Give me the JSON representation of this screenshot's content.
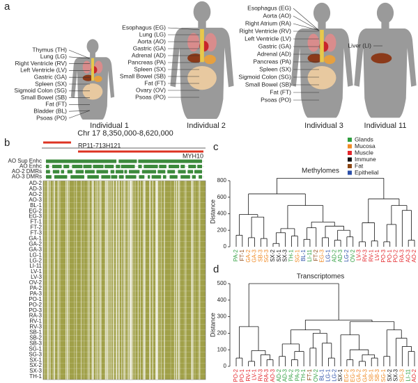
{
  "panel_a": {
    "label": "a",
    "individuals": [
      {
        "name": "Individual 1",
        "organs": [
          "Thymus (TH)",
          "Lung (LG)",
          "Right Ventricle (RV)",
          "Left Ventricle (LV)",
          "Gastric (GA)",
          "Spleen (SX)",
          "Sigmoid Colon (SG)",
          "Small Bowel (SB)",
          "Fat (FT)",
          "Bladder (BL)",
          "Psoas (PO)"
        ]
      },
      {
        "name": "Individual 2",
        "organs": [
          "Esophagus (EG)",
          "Lung (LG)",
          "Aorta (AO)",
          "Gastric (GA)",
          "Adrenal (AD)",
          "Pancreas (PA)",
          "Spleen (SX)",
          "Small Bowel (SB)",
          "Fat (FT)",
          "Ovary (OV)",
          "Psoas (PO)"
        ]
      },
      {
        "name": "Individual 3",
        "organs": [
          "Esophagus (EG)",
          "Aorta (AO)",
          "Right Atrium (RA)",
          "Right Ventricle (RV)",
          "Left Ventricle (LV)",
          "Gastric (GA)",
          "Adrenal (AD)",
          "Pancreas (PA)",
          "Spleen (SX)",
          "Sigmoid Colon (SG)",
          "Small Bowel (SB)",
          "Fat (FT)",
          "Psoas (PO)"
        ]
      },
      {
        "name": "Individual 11",
        "organs": [
          "Liver (LI)"
        ]
      }
    ]
  },
  "panel_b": {
    "label": "b",
    "region": "Chr 17 8,350,000-8,620,000",
    "genes": [
      "RP11-713H121",
      "MYH10"
    ],
    "tracks": [
      "AO Sup Enhc",
      "AO Enhc",
      "AO-2 DMRs",
      "AO-3 DMRs"
    ],
    "rows": [
      "AD-2",
      "AD-3",
      "AO-2",
      "AO-3",
      "BL-1",
      "EG-2",
      "EG-3",
      "FT-1",
      "FT-2",
      "FT-3",
      "GA-1",
      "GA-2",
      "GA-3",
      "LG-1",
      "LG-2",
      "LI-11",
      "LV-1",
      "LV-3",
      "OV-2",
      "PA-2",
      "PA-3",
      "PO-1",
      "PO-2",
      "PO-3",
      "RA-3",
      "RV-1",
      "RV-3",
      "SB-1",
      "SB-2",
      "SB-3",
      "SG-1",
      "SG-3",
      "SX-1",
      "SX-2",
      "SX-3",
      "TH-1"
    ]
  },
  "legend": [
    {
      "name": "Glands",
      "color": "#2e9e3e"
    },
    {
      "name": "Mucosa",
      "color": "#f08a24"
    },
    {
      "name": "Muscle",
      "color": "#e3262b"
    },
    {
      "name": "Immune",
      "color": "#111111"
    },
    {
      "name": "Fat",
      "color": "#8b4513"
    },
    {
      "name": "Epithelial",
      "color": "#2b4fa8"
    }
  ],
  "panel_c": {
    "label": "c",
    "title": "Methylomes",
    "y_label": "Distance",
    "ylim": [
      0,
      850
    ],
    "yticks": [
      0,
      200,
      400,
      600,
      800
    ],
    "tree": {
      "height": 830,
      "children": [
        {
          "height": 640,
          "children": [
            {
              "height": 390,
              "children": [
                {
                  "height": 140,
                  "children": [
                    {
                      "label": "PA-2",
                      "color": "#2e9e3e"
                    },
                    {
                      "label": "FT-1",
                      "color": "#8b4513"
                    }
                  ]
                },
                {
                  "height": 360,
                  "children": [
                    {
                      "height": 110,
                      "children": [
                        {
                          "label": "GA-2",
                          "color": "#f08a24"
                        },
                        {
                          "label": "GA-3",
                          "color": "#f08a24"
                        }
                      ]
                    },
                    {
                      "height": 100,
                      "children": [
                        {
                          "label": "SB-3",
                          "color": "#f08a24"
                        },
                        {
                          "label": "SG-3",
                          "color": "#f08a24"
                        }
                      ]
                    }
                  ]
                }
              ]
            },
            {
              "height": 500,
              "children": [
                {
                  "height": 220,
                  "children": [
                    {
                      "height": 170,
                      "children": [
                        {
                          "height": 40,
                          "children": [
                            {
                              "label": "SX-2",
                              "color": "#111111"
                            },
                            {
                              "label": "SX-1",
                              "color": "#111111"
                            }
                          ]
                        },
                        {
                          "label": "SX-3",
                          "color": "#111111"
                        }
                      ]
                    },
                    {
                      "height": 130,
                      "children": [
                        {
                          "label": "TH-1",
                          "color": "#2e9e3e"
                        },
                        {
                          "label": "SG-1",
                          "color": "#f08a24"
                        }
                      ]
                    }
                  ]
                },
                {
                  "height": 300,
                  "children": [
                    {
                      "height": 230,
                      "children": [
                        {
                          "height": 90,
                          "children": [
                            {
                              "label": "BL-1",
                              "color": "#2b4fa8"
                            },
                            {
                              "label": "LI-11",
                              "color": "#2e9e3e"
                            }
                          ]
                        },
                        {
                          "label": "FT-2",
                          "color": "#8b4513"
                        }
                      ]
                    },
                    {
                      "height": 250,
                      "children": [
                        {
                          "height": 110,
                          "children": [
                            {
                              "label": "EG-3",
                              "color": "#f08a24"
                            },
                            {
                              "label": "LG-1",
                              "color": "#2b4fa8"
                            }
                          ]
                        },
                        {
                          "height": 200,
                          "children": [
                            {
                              "height": 80,
                              "children": [
                                {
                                  "label": "AD-2",
                                  "color": "#2e9e3e"
                                },
                                {
                                  "label": "AD-3",
                                  "color": "#2e9e3e"
                                }
                              ]
                            },
                            {
                              "height": 120,
                              "children": [
                                {
                                  "label": "LG-2",
                                  "color": "#2b4fa8"
                                },
                                {
                                  "label": "OV-2",
                                  "color": "#2e9e3e"
                                }
                              ]
                            }
                          ]
                        }
                      ]
                    }
                  ]
                }
              ]
            }
          ]
        },
        {
          "height": 580,
          "children": [
            {
              "height": 290,
              "children": [
                {
                  "height": 60,
                  "children": [
                    {
                      "label": "LV-3",
                      "color": "#e3262b"
                    },
                    {
                      "label": "RV-3",
                      "color": "#e3262b"
                    }
                  ]
                },
                {
                  "height": 70,
                  "children": [
                    {
                      "label": "RV-1",
                      "color": "#e3262b"
                    },
                    {
                      "label": "LV-1",
                      "color": "#e3262b"
                    }
                  ]
                }
              ]
            },
            {
              "height": 500,
              "children": [
                {
                  "height": 270,
                  "children": [
                    {
                      "height": 60,
                      "children": [
                        {
                          "label": "PO-3",
                          "color": "#e3262b"
                        },
                        {
                          "label": "PO-1",
                          "color": "#e3262b"
                        }
                      ]
                    },
                    {
                      "label": "PO-2",
                      "color": "#e3262b"
                    }
                  ]
                },
                {
                  "height": 440,
                  "children": [
                    {
                      "label": "RA-3",
                      "color": "#e3262b"
                    },
                    {
                      "height": 80,
                      "children": [
                        {
                          "label": "AO-3",
                          "color": "#e3262b"
                        },
                        {
                          "label": "AO-2",
                          "color": "#e3262b"
                        }
                      ]
                    }
                  ]
                }
              ]
            }
          ]
        }
      ]
    }
  },
  "panel_d": {
    "label": "d",
    "title": "Transcriptomes",
    "y_label": "Distance",
    "ylim": [
      0,
      500
    ],
    "yticks": [
      0,
      100,
      200,
      300,
      400,
      500
    ],
    "tree": {
      "height": 500,
      "children": [
        {
          "height": 240,
          "children": [
            {
              "height": 50,
              "children": [
                {
                  "label": "PO-2",
                  "color": "#e3262b"
                },
                {
                  "label": "PO-1",
                  "color": "#e3262b"
                }
              ]
            },
            {
              "height": 95,
              "children": [
                {
                  "height": 30,
                  "children": [
                    {
                      "label": "RV-1",
                      "color": "#e3262b"
                    },
                    {
                      "label": "LV-1",
                      "color": "#e3262b"
                    }
                  ]
                },
                {
                  "height": 70,
                  "children": [
                    {
                      "label": "RV-3",
                      "color": "#e3262b"
                    },
                    {
                      "height": 40,
                      "children": [
                        {
                          "label": "RA-3",
                          "color": "#e3262b"
                        },
                        {
                          "label": "AO-3",
                          "color": "#e3262b"
                        }
                      ]
                    }
                  ]
                }
              ]
            }
          ]
        },
        {
          "height": 280,
          "children": [
            {
              "height": 220,
              "children": [
                {
                  "height": 135,
                  "children": [
                    {
                      "height": 60,
                      "children": [
                        {
                          "label": "AD-2",
                          "color": "#2e9e3e"
                        },
                        {
                          "label": "AD-3",
                          "color": "#2e9e3e"
                        }
                      ]
                    },
                    {
                      "height": 90,
                      "children": [
                        {
                          "height": 40,
                          "children": [
                            {
                              "label": "PA-2",
                              "color": "#2e9e3e"
                            },
                            {
                              "label": "PA-3",
                              "color": "#2e9e3e"
                            }
                          ]
                        },
                        {
                          "label": "TH-1",
                          "color": "#2e9e3e"
                        }
                      ]
                    }
                  ]
                },
                {
                  "height": 200,
                  "children": [
                    {
                      "height": 110,
                      "children": [
                        {
                          "label": "FT-1",
                          "color": "#8b4513"
                        },
                        {
                          "label": "OV-2",
                          "color": "#2e9e3e"
                        }
                      ]
                    },
                    {
                      "height": 140,
                      "children": [
                        {
                          "label": "BL-1",
                          "color": "#2b4fa8"
                        },
                        {
                          "height": 50,
                          "children": [
                            {
                              "label": "LG-1",
                              "color": "#2b4fa8"
                            },
                            {
                              "label": "LG-2",
                              "color": "#2b4fa8"
                            }
                          ]
                        }
                      ]
                    }
                  ]
                }
              ]
            },
            {
              "height": 270,
              "children": [
                {
                  "height": 190,
                  "children": [
                    {
                      "label": "SX-1",
                      "color": "#111111"
                    },
                    {
                      "height": 100,
                      "children": [
                        {
                          "height": 40,
                          "children": [
                            {
                              "label": "EG-2",
                              "color": "#f08a24"
                            },
                            {
                              "label": "EG-3",
                              "color": "#f08a24"
                            }
                          ]
                        },
                        {
                          "height": 70,
                          "children": [
                            {
                              "height": 30,
                              "children": [
                                {
                                  "label": "GA-2",
                                  "color": "#f08a24"
                                },
                                {
                                  "label": "GA-3",
                                  "color": "#f08a24"
                                }
                              ]
                            },
                            {
                              "height": 50,
                              "children": [
                                {
                                  "label": "SB-1",
                                  "color": "#f08a24"
                                },
                                {
                                  "label": "SB-3",
                                  "color": "#f08a24"
                                }
                              ]
                            }
                          ]
                        }
                      ]
                    }
                  ]
                },
                {
                  "height": 220,
                  "children": [
                    {
                      "height": 60,
                      "children": [
                        {
                          "label": "SG-1",
                          "color": "#f08a24"
                        },
                        {
                          "label": "SX-2",
                          "color": "#111111"
                        }
                      ]
                    },
                    {
                      "height": 170,
                      "children": [
                        {
                          "label": "SX-3",
                          "color": "#111111"
                        },
                        {
                          "height": 120,
                          "children": [
                            {
                              "label": "SG-3",
                              "color": "#f08a24"
                            },
                            {
                              "height": 90,
                              "children": [
                                {
                                  "label": "LI-11",
                                  "color": "#2e9e3e"
                                },
                                {
                                  "label": "AO-2",
                                  "color": "#e3262b"
                                }
                              ]
                            }
                          ]
                        }
                      ]
                    }
                  ]
                }
              ]
            }
          ]
        }
      ]
    }
  }
}
